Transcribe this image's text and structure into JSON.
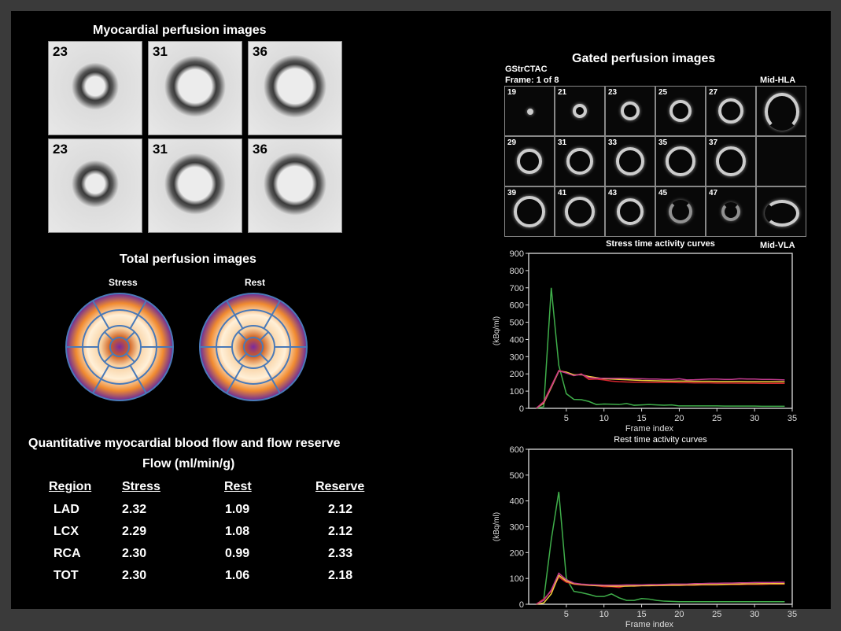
{
  "left": {
    "perfusion_title": "Myocardial perfusion images",
    "perfusion_slices": [
      "23",
      "31",
      "36",
      "23",
      "31",
      "36"
    ],
    "total_title": "Total perfusion images",
    "polar_labels": [
      "Stress",
      "Rest"
    ],
    "flow_title": "Quantitative myocardial blood flow and flow reserve",
    "flow_subtitle": "Flow (ml/min/g)",
    "table": {
      "headers": [
        "Region",
        "Stress",
        "Rest",
        "Reserve"
      ],
      "rows": [
        [
          "LAD",
          "2.32",
          "1.09",
          "2.12"
        ],
        [
          "LCX",
          "2.29",
          "1.08",
          "2.12"
        ],
        [
          "RCA",
          "2.30",
          "0.99",
          "2.33"
        ],
        [
          "TOT",
          "2.30",
          "1.06",
          "2.18"
        ]
      ]
    }
  },
  "gated": {
    "title": "Gated perfusion images",
    "series": "GStrCTAC",
    "frame": "Frame: 1 of 8",
    "hla": "Mid-HLA",
    "vla": "Mid-VLA",
    "slices": [
      "19",
      "21",
      "23",
      "25",
      "27",
      "29",
      "31",
      "33",
      "35",
      "37",
      "39",
      "41",
      "43",
      "45",
      "47"
    ]
  },
  "colors": {
    "green": "#3fae4a",
    "red": "#d7262e",
    "yellow": "#f2d13a",
    "magenta": "#c23b8f",
    "axis": "#dddddd"
  },
  "chart_data": [
    {
      "type": "line",
      "title": "Stress time activity curves",
      "xlabel": "Frame index",
      "ylabel": "(kBq/ml)",
      "xlim": [
        0,
        35
      ],
      "ylim": [
        0,
        900
      ],
      "xticks": [
        5,
        10,
        15,
        20,
        25,
        30,
        35
      ],
      "yticks": [
        0,
        100,
        200,
        300,
        400,
        500,
        600,
        700,
        800,
        900
      ],
      "x": [
        1,
        2,
        3,
        4,
        5,
        6,
        7,
        8,
        9,
        10,
        11,
        12,
        13,
        14,
        15,
        16,
        17,
        18,
        19,
        20,
        21,
        22,
        23,
        24,
        25,
        26,
        27,
        28,
        29,
        30,
        31,
        32,
        33,
        34
      ],
      "series": [
        {
          "name": "green",
          "values": [
            0,
            10,
            700,
            250,
            85,
            52,
            50,
            40,
            22,
            25,
            24,
            22,
            28,
            18,
            20,
            22,
            20,
            18,
            20,
            14,
            14,
            14,
            14,
            14,
            14,
            13,
            13,
            13,
            13,
            13,
            12,
            12,
            12,
            12
          ]
        },
        {
          "name": "red",
          "values": [
            0,
            40,
            130,
            220,
            210,
            190,
            200,
            168,
            170,
            165,
            158,
            155,
            153,
            152,
            152,
            151,
            150,
            150,
            150,
            149,
            149,
            148,
            148,
            148,
            147,
            147,
            147,
            146,
            146,
            146,
            145,
            145,
            145,
            145
          ]
        },
        {
          "name": "yellow",
          "values": [
            0,
            30,
            120,
            215,
            210,
            195,
            195,
            185,
            178,
            172,
            170,
            168,
            166,
            164,
            162,
            161,
            160,
            159,
            158,
            158,
            158,
            157,
            157,
            157,
            156,
            156,
            156,
            156,
            155,
            155,
            155,
            155,
            155,
            155
          ]
        },
        {
          "name": "magenta",
          "values": [
            0,
            35,
            125,
            218,
            205,
            190,
            198,
            178,
            175,
            175,
            174,
            174,
            174,
            172,
            172,
            170,
            170,
            168,
            168,
            172,
            165,
            166,
            168,
            170,
            170,
            168,
            168,
            172,
            170,
            170,
            168,
            168,
            167,
            165
          ]
        }
      ]
    },
    {
      "type": "line",
      "title": "Rest time activity curves",
      "xlabel": "Frame index",
      "ylabel": "(kBq/ml)",
      "xlim": [
        0,
        35
      ],
      "ylim": [
        0,
        600
      ],
      "xticks": [
        5,
        10,
        15,
        20,
        25,
        30,
        35
      ],
      "yticks": [
        0,
        100,
        200,
        300,
        400,
        500,
        600
      ],
      "x": [
        1,
        2,
        3,
        4,
        5,
        6,
        7,
        8,
        9,
        10,
        11,
        12,
        13,
        14,
        15,
        16,
        17,
        18,
        19,
        20,
        21,
        22,
        23,
        24,
        25,
        26,
        27,
        28,
        29,
        30,
        31,
        32,
        33,
        34
      ],
      "series": [
        {
          "name": "green",
          "values": [
            0,
            20,
            250,
            435,
            100,
            50,
            45,
            38,
            30,
            30,
            40,
            25,
            15,
            15,
            22,
            20,
            15,
            12,
            11,
            10,
            10,
            10,
            10,
            10,
            10,
            10,
            10,
            10,
            10,
            10,
            10,
            10,
            10,
            10
          ]
        },
        {
          "name": "red",
          "values": [
            0,
            20,
            50,
            105,
            85,
            78,
            75,
            73,
            72,
            68,
            68,
            65,
            72,
            70,
            72,
            72,
            72,
            73,
            73,
            73,
            74,
            74,
            75,
            75,
            75,
            76,
            76,
            76,
            77,
            77,
            77,
            78,
            78,
            78
          ]
        },
        {
          "name": "yellow",
          "values": [
            0,
            5,
            40,
            112,
            90,
            80,
            76,
            74,
            72,
            72,
            70,
            70,
            70,
            71,
            72,
            72,
            73,
            73,
            74,
            74,
            75,
            75,
            76,
            76,
            76,
            77,
            78,
            78,
            79,
            79,
            80,
            80,
            80,
            80
          ]
        },
        {
          "name": "magenta",
          "values": [
            0,
            15,
            55,
            120,
            95,
            82,
            78,
            76,
            75,
            74,
            74,
            74,
            75,
            75,
            75,
            76,
            76,
            77,
            78,
            78,
            78,
            80,
            80,
            81,
            81,
            82,
            82,
            83,
            83,
            84,
            84,
            84,
            85,
            85
          ]
        }
      ]
    }
  ]
}
